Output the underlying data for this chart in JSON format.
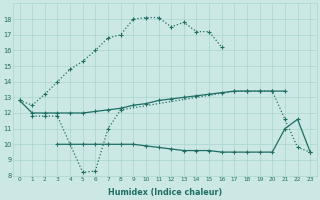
{
  "xlabel": "Humidex (Indice chaleur)",
  "bg_color": "#cce8e4",
  "grid_color": "#aad4cf",
  "line_color": "#1e6e64",
  "ylim": [
    8,
    19
  ],
  "xlim": [
    -0.5,
    23.5
  ],
  "series": [
    {
      "x": [
        0,
        1,
        2,
        3,
        4,
        5,
        6,
        7,
        8,
        9,
        10,
        11,
        12,
        13,
        14,
        15,
        16
      ],
      "y": [
        12.8,
        12.5,
        13.2,
        14.0,
        14.8,
        15.3,
        16.0,
        16.8,
        17.0,
        18.0,
        18.1,
        18.1,
        17.5,
        17.8,
        17.2,
        17.2,
        16.2
      ],
      "dotted": true
    },
    {
      "x": [
        1,
        2,
        3,
        4,
        5,
        6,
        7,
        8,
        17,
        18,
        19,
        20,
        21,
        22,
        23
      ],
      "y": [
        11.8,
        11.8,
        11.8,
        10.0,
        8.2,
        8.3,
        11.0,
        12.2,
        13.4,
        13.4,
        13.4,
        13.4,
        11.6,
        9.8,
        9.5
      ],
      "dotted": true
    },
    {
      "x": [
        0,
        1,
        2,
        3,
        4,
        5,
        6,
        7,
        8,
        9,
        10,
        11,
        12,
        13,
        14,
        15,
        16,
        17,
        18,
        19,
        20,
        21
      ],
      "y": [
        12.8,
        12.0,
        12.0,
        12.0,
        12.0,
        12.0,
        12.1,
        12.2,
        12.3,
        12.5,
        12.6,
        12.8,
        12.9,
        13.0,
        13.1,
        13.2,
        13.3,
        13.4,
        13.4,
        13.4,
        13.4,
        13.4
      ],
      "dotted": false
    },
    {
      "x": [
        3,
        4,
        5,
        6,
        7,
        8,
        9,
        10,
        11,
        12,
        13,
        14,
        15,
        16,
        17,
        18,
        19,
        20,
        21,
        22,
        23
      ],
      "y": [
        10.0,
        10.0,
        10.0,
        10.0,
        10.0,
        10.0,
        10.0,
        9.9,
        9.8,
        9.7,
        9.6,
        9.6,
        9.6,
        9.5,
        9.5,
        9.5,
        9.5,
        9.5,
        11.0,
        11.6,
        9.5
      ],
      "dotted": false
    }
  ]
}
